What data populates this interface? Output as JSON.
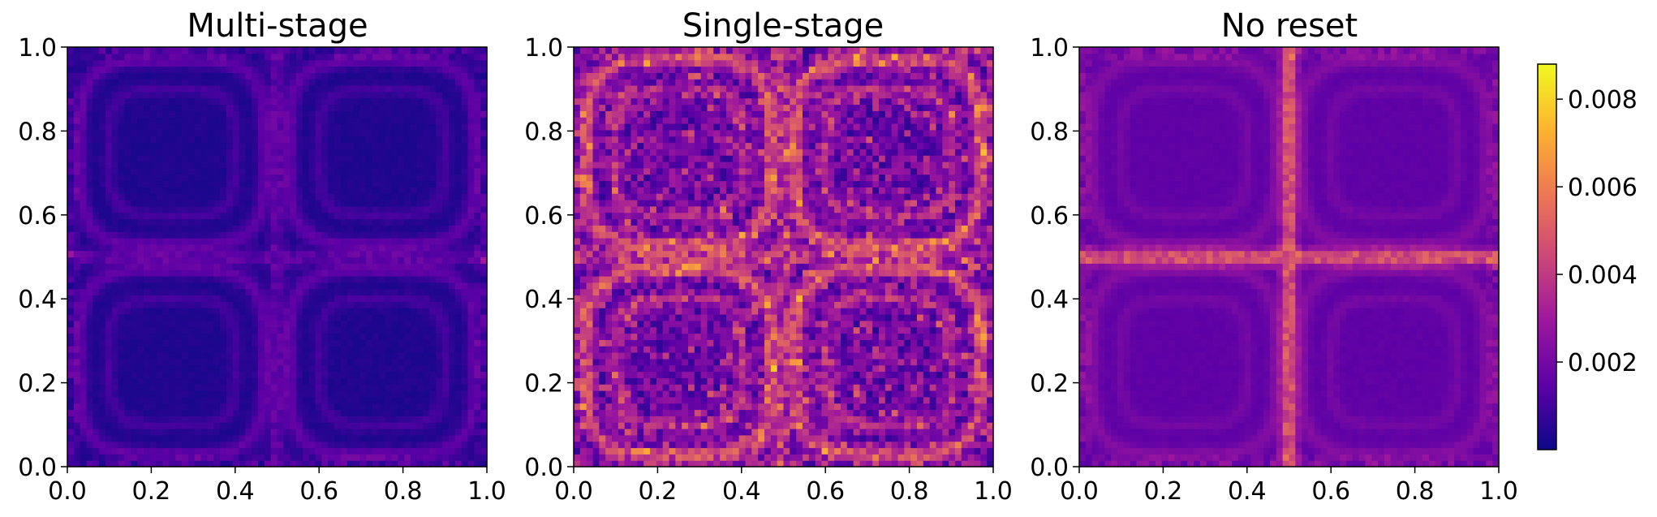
{
  "chart_data": [
    {
      "type": "heatmap",
      "title": "Multi-stage",
      "xlim": [
        0.0,
        1.0
      ],
      "ylim": [
        0.0,
        1.0
      ],
      "x_ticks": [
        "0.0",
        "0.2",
        "0.4",
        "0.6",
        "0.8",
        "1.0"
      ],
      "y_ticks": [
        "0.0",
        "0.2",
        "0.4",
        "0.6",
        "0.8",
        "1.0"
      ],
      "colormap": "plasma",
      "value_range": [
        0.0,
        0.0088
      ],
      "pattern": {
        "base_level": 0.0003,
        "ring_level": 0.0012,
        "cross_level": 0.0015,
        "noise": 0.0003
      }
    },
    {
      "type": "heatmap",
      "title": "Single-stage",
      "xlim": [
        0.0,
        1.0
      ],
      "ylim": [
        0.0,
        1.0
      ],
      "x_ticks": [
        "0.0",
        "0.2",
        "0.4",
        "0.6",
        "0.8",
        "1.0"
      ],
      "y_ticks": [
        "0.0",
        "0.2",
        "0.4",
        "0.6",
        "0.8",
        "1.0"
      ],
      "colormap": "plasma",
      "value_range": [
        0.0,
        0.0088
      ],
      "pattern": {
        "base_level": 0.0012,
        "ring_level": 0.0028,
        "cross_level": 0.0022,
        "noise": 0.0022
      }
    },
    {
      "type": "heatmap",
      "title": "No reset",
      "xlim": [
        0.0,
        1.0
      ],
      "ylim": [
        0.0,
        1.0
      ],
      "x_ticks": [
        "0.0",
        "0.2",
        "0.4",
        "0.6",
        "0.8",
        "1.0"
      ],
      "y_ticks": [
        "0.0",
        "0.2",
        "0.4",
        "0.6",
        "0.8",
        "1.0"
      ],
      "colormap": "plasma",
      "value_range": [
        0.0,
        0.0088
      ],
      "pattern": {
        "base_level": 0.0015,
        "ring_level": 0.0008,
        "cross_level": 0.0042,
        "noise": 0.0002
      }
    }
  ],
  "colorbar": {
    "ticks": [
      "0.002",
      "0.004",
      "0.006",
      "0.008"
    ],
    "tick_values": [
      0.002,
      0.004,
      0.006,
      0.008
    ],
    "range": [
      0.0,
      0.0088
    ],
    "colormap": "plasma"
  },
  "colors": {
    "plasma_stops": [
      "#0d0887",
      "#5c01a6",
      "#9c179e",
      "#cc4778",
      "#ed7953",
      "#fdb42f",
      "#f0f921"
    ]
  }
}
